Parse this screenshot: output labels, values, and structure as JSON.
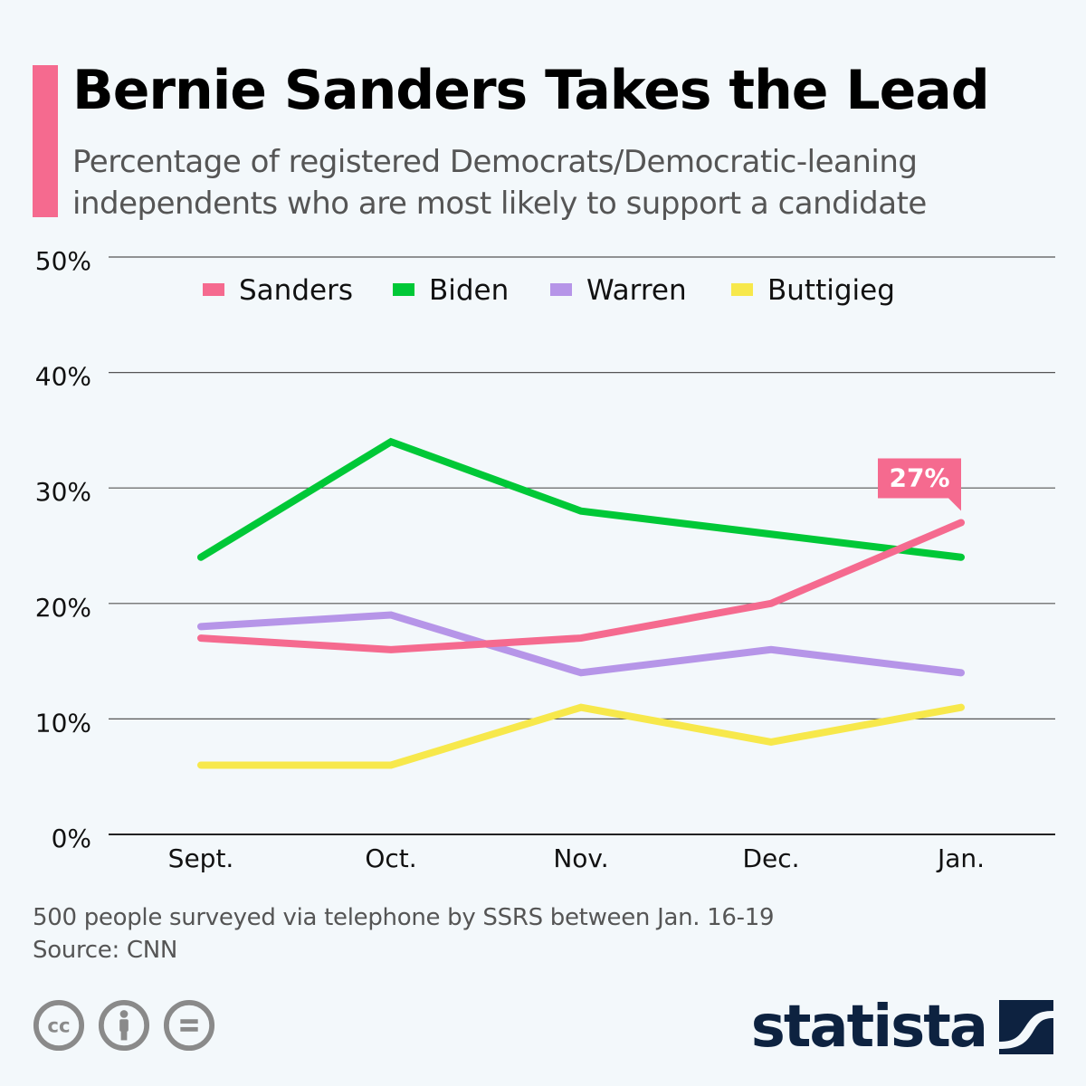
{
  "header": {
    "title": "Bernie Sanders Takes the Lead",
    "subtitle": "Percentage of registered Democrats/Democratic-leaning independents who are most likely to support a candidate",
    "accent_color": "#f56a8f"
  },
  "chart_data": {
    "type": "line",
    "title": "Bernie Sanders Takes the Lead",
    "xlabel": "",
    "ylabel": "",
    "categories": [
      "Sept.",
      "Oct.",
      "Nov.",
      "Dec.",
      "Jan."
    ],
    "ylim": [
      0,
      50
    ],
    "yticks": [
      0,
      10,
      20,
      30,
      40,
      50
    ],
    "ytick_labels": [
      "0%",
      "10%",
      "20%",
      "30%",
      "40%",
      "50%"
    ],
    "grid": true,
    "legend_position": "top-center",
    "series": [
      {
        "name": "Sanders",
        "color": "#f56a8f",
        "values": [
          17,
          16,
          17,
          20,
          27
        ]
      },
      {
        "name": "Biden",
        "color": "#00c837",
        "values": [
          24,
          34,
          28,
          26,
          24
        ]
      },
      {
        "name": "Warren",
        "color": "#b695e8",
        "values": [
          18,
          19,
          14,
          16,
          14
        ]
      },
      {
        "name": "Buttigieg",
        "color": "#f7e84b",
        "values": [
          6,
          6,
          11,
          8,
          11
        ]
      }
    ],
    "annotations": [
      {
        "series": "Sanders",
        "category": "Jan.",
        "label": "27%"
      }
    ]
  },
  "footer": {
    "note": "500 people surveyed via telephone by SSRS between Jan. 16-19",
    "source": "Source: CNN",
    "license_icons": [
      "cc-icon",
      "by-attribution-icon",
      "no-derivatives-icon"
    ],
    "brand": "statista",
    "brand_color": "#0d2240"
  }
}
